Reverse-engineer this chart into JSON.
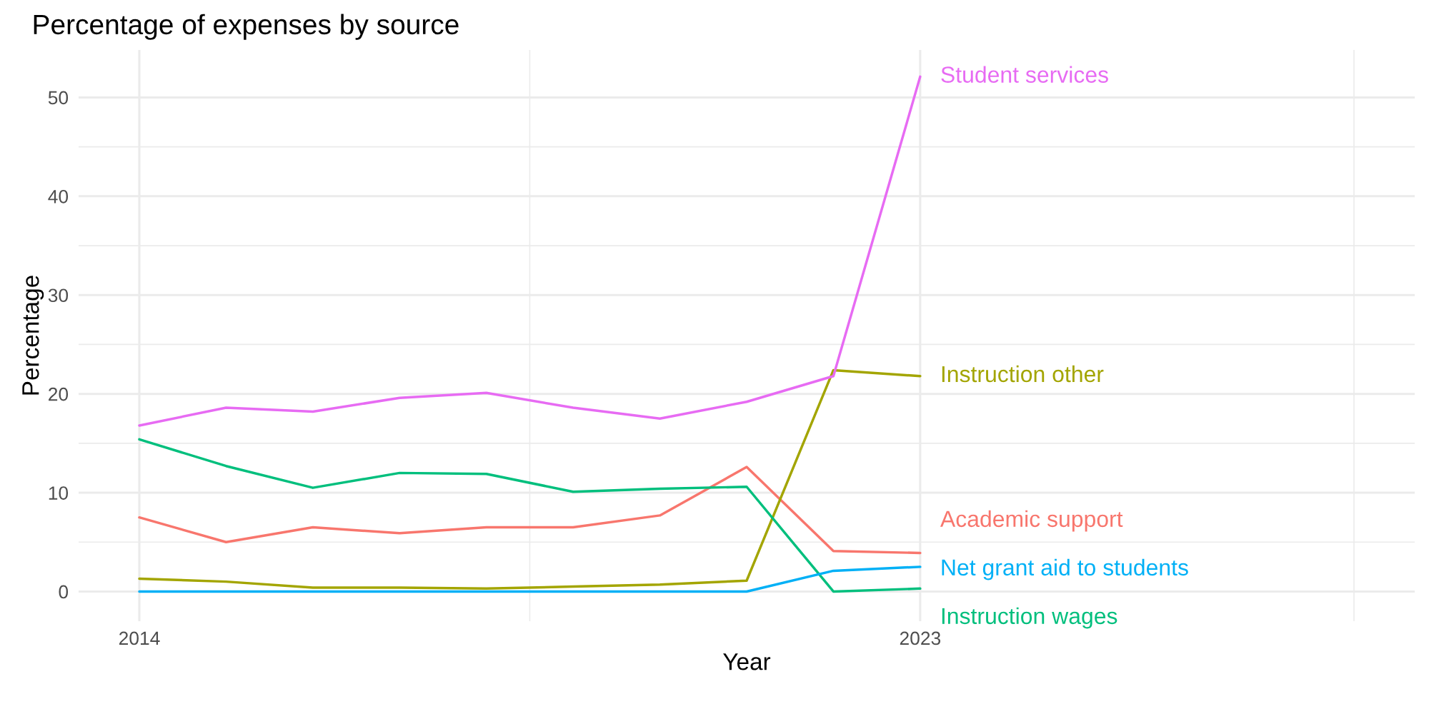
{
  "chart_data": {
    "type": "line",
    "title": "Percentage of expenses by source",
    "xlabel": "Year",
    "ylabel": "Percentage",
    "x": [
      2014,
      2015,
      2016,
      2017,
      2018,
      2019,
      2020,
      2021,
      2022,
      2023
    ],
    "series": [
      {
        "name": "Academic support",
        "color": "#f8766d",
        "values": [
          7.5,
          5.0,
          6.5,
          5.9,
          6.5,
          6.5,
          7.7,
          12.6,
          4.1,
          3.9
        ]
      },
      {
        "name": "Instruction other",
        "color": "#a3a500",
        "values": [
          1.3,
          1.0,
          0.4,
          0.4,
          0.3,
          0.5,
          0.7,
          1.1,
          22.4,
          21.8
        ]
      },
      {
        "name": "Instruction wages",
        "color": "#00bf7d",
        "values": [
          15.4,
          12.7,
          10.5,
          12.0,
          11.9,
          10.1,
          10.4,
          10.6,
          0,
          0.3
        ]
      },
      {
        "name": "Net grant aid to students",
        "color": "#00b0f6",
        "values": [
          0,
          0,
          0,
          0,
          0,
          0,
          0,
          0,
          2.1,
          2.5
        ]
      },
      {
        "name": "Student services",
        "color": "#e76bf3",
        "values": [
          16.8,
          18.6,
          18.2,
          19.6,
          20.1,
          18.6,
          17.5,
          19.2,
          21.8,
          52.1
        ]
      }
    ],
    "xlim": [
      2013.3,
      2028.7
    ],
    "ylim": [
      -3,
      54.8
    ],
    "xticks": [
      2014,
      {
        "value": 2018.5,
        "label": null
      },
      2023,
      {
        "value": 2028,
        "label": null
      }
    ],
    "yticks": [
      0,
      10,
      20,
      30,
      40,
      50
    ],
    "grid": true,
    "legend": false
  }
}
